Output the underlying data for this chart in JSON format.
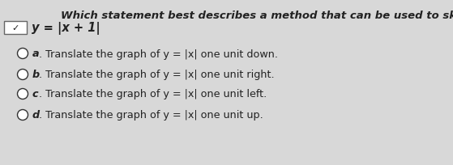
{
  "background_color": "#d8d8d8",
  "title_text": "Which statement best describes a method that can be used to sketch the graph.",
  "equation_label": "y = |x + 1|",
  "options": [
    {
      "letter": "a",
      "text": ". Translate the graph of y = |x| one unit down."
    },
    {
      "letter": "b",
      "text": ". Translate the graph of y = |x| one unit right."
    },
    {
      "letter": "c",
      "text": ". Translate the graph of y = |x| one unit left."
    },
    {
      "letter": "d",
      "text": ". Translate the graph of y = |x| one unit up."
    }
  ],
  "title_fontsize": 9.5,
  "option_fontsize": 9.2,
  "equation_fontsize": 10.5,
  "text_color": "#222222",
  "box_color": "#ffffff",
  "box_border_color": "#666666",
  "circle_color": "#ffffff",
  "circle_edge": "#333333"
}
